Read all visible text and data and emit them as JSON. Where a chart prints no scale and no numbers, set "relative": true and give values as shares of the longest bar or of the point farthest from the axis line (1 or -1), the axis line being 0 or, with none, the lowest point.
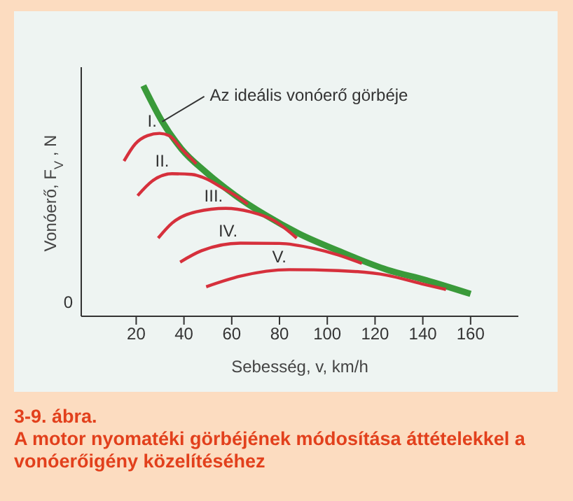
{
  "chart_data": {
    "type": "line",
    "title": "3-9. ábra.",
    "subtitle": "A motor nyomatéki görbéjének módosítása áttételekkel a vonóerőigény közelítéséhez",
    "xlabel": "Sebesség, v, km/h",
    "ylabel": "Vonóerő, F$_{V}$ , N",
    "relative": true,
    "xlim": [
      -3,
      180
    ],
    "xticks": [
      20,
      40,
      60,
      80,
      100,
      120,
      140,
      160
    ],
    "marker": "none",
    "line_style": "solid",
    "grid": false,
    "annotations": [
      "0"
    ],
    "series": [
      {
        "name": "Az ideális vonóerő görbéje",
        "color": "#3a9a3a",
        "x": [
          23,
          30.9,
          39,
          49.3,
          61.6,
          73.9,
          88.2,
          104.6,
          125,
          141.5,
          160
        ],
        "values": [
          1.0,
          0.844,
          0.725,
          0.624,
          0.523,
          0.44,
          0.358,
          0.284,
          0.202,
          0.156,
          0.097
        ]
      },
      {
        "name": "I.",
        "color": "#d6303c",
        "x": [
          14.9,
          19.6,
          24.7,
          29.8,
          33.9,
          39,
          45.2
        ],
        "values": [
          0.673,
          0.747,
          0.783,
          0.793,
          0.783,
          0.725,
          0.661
        ]
      },
      {
        "name": "II.",
        "color": "#d6303c",
        "x": [
          20.6,
          26.8,
          35,
          43.2,
          49.3,
          55.5,
          61.6,
          66.7
        ],
        "values": [
          0.523,
          0.587,
          0.618,
          0.615,
          0.596,
          0.56,
          0.523,
          0.486
        ]
      },
      {
        "name": "III.",
        "color": "#d6303c",
        "x": [
          29.2,
          35,
          45.2,
          57.5,
          67.7,
          78,
          87.2
        ],
        "values": [
          0.339,
          0.404,
          0.453,
          0.468,
          0.453,
          0.413,
          0.339
        ]
      },
      {
        "name": "IV.",
        "color": "#d6303c",
        "x": [
          38.4,
          47.3,
          63.6,
          80,
          94.4,
          104.6,
          114.5
        ],
        "values": [
          0.235,
          0.284,
          0.317,
          0.316,
          0.294,
          0.266,
          0.229
        ]
      },
      {
        "name": "V.",
        "color": "#d6303c",
        "x": [
          49.3,
          63.6,
          84.1,
          104.6,
          125,
          139.5,
          149.7
        ],
        "values": [
          0.128,
          0.174,
          0.202,
          0.198,
          0.178,
          0.141,
          0.116
        ]
      }
    ]
  }
}
